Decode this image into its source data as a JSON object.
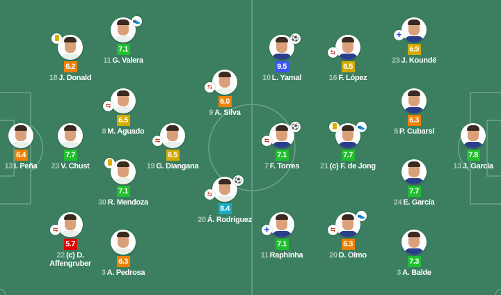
{
  "colors": {
    "pitch": "#3b7f60",
    "lines": "#6fa287",
    "green": "#1fbf2e",
    "orange": "#f08000",
    "yellow": "#d4a900",
    "red": "#e00000",
    "blue": "#3a55ff",
    "teal": "#19a8c6"
  },
  "home_shirt": "#e8f0ea",
  "away_shirt": "#2a3f8a",
  "players": [
    {
      "team": "home",
      "number": "13",
      "name": "I. Peña",
      "rating": "6.4",
      "rating_color": "#f08000",
      "icons": []
    },
    {
      "team": "home",
      "number": "23",
      "name": "V. Chust",
      "rating": "7.7",
      "rating_color": "#1fbf2e",
      "icons": []
    },
    {
      "team": "home",
      "number": "18",
      "name": "J. Donald",
      "rating": "6.2",
      "rating_color": "#f08000",
      "icons": [
        "yellow-card"
      ]
    },
    {
      "team": "home",
      "number": "11",
      "name": "G. Valera",
      "rating": "7.1",
      "rating_color": "#1fbf2e",
      "icons": [
        "assist"
      ]
    },
    {
      "team": "home",
      "number": "8",
      "name": "M. Aguado",
      "rating": "6.5",
      "rating_color": "#d4a900",
      "icons": [
        "substitution"
      ]
    },
    {
      "team": "home",
      "number": "30",
      "name": "R. Mendoza",
      "rating": "7.1",
      "rating_color": "#1fbf2e",
      "icons": [
        "yellow-card"
      ]
    },
    {
      "team": "home",
      "number": "22",
      "name": "(c) D. Affengruber",
      "rating": "5.7",
      "rating_color": "#e00000",
      "icons": [
        "substitution"
      ]
    },
    {
      "team": "home",
      "number": "3",
      "name": "A. Pedrosa",
      "rating": "6.3",
      "rating_color": "#f08000",
      "icons": []
    },
    {
      "team": "home",
      "number": "19",
      "name": "G. Diangana",
      "rating": "6.5",
      "rating_color": "#d4a900",
      "icons": [
        "substitution"
      ]
    },
    {
      "team": "home",
      "number": "9",
      "name": "A. Silva",
      "rating": "6.0",
      "rating_color": "#f08000",
      "icons": [
        "substitution"
      ]
    },
    {
      "team": "home",
      "number": "20",
      "name": "Á. Rodriguez",
      "rating": "8.4",
      "rating_color": "#19a8c6",
      "icons": [
        "goal",
        "substitution"
      ]
    },
    {
      "team": "away",
      "number": "10",
      "name": "L. Yamal",
      "rating": "9.5",
      "rating_color": "#3a55ff",
      "icons": [
        "goal"
      ]
    },
    {
      "team": "away",
      "number": "16",
      "name": "F. López",
      "rating": "6.5",
      "rating_color": "#d4a900",
      "icons": [
        "substitution"
      ]
    },
    {
      "team": "away",
      "number": "23",
      "name": "J. Koundé",
      "rating": "6.9",
      "rating_color": "#d4a900",
      "icons": [
        "injury-substitution"
      ]
    },
    {
      "team": "away",
      "number": "5",
      "name": "P. Cubarsí",
      "rating": "6.3",
      "rating_color": "#f08000",
      "icons": []
    },
    {
      "team": "away",
      "number": "7",
      "name": "F. Torres",
      "rating": "7.1",
      "rating_color": "#1fbf2e",
      "icons": [
        "goal",
        "substitution"
      ]
    },
    {
      "team": "away",
      "number": "21",
      "name": "(c) F. de Jong",
      "rating": "7.7",
      "rating_color": "#1fbf2e",
      "icons": [
        "yellow-card",
        "assist"
      ]
    },
    {
      "team": "away",
      "number": "13",
      "name": "J. García",
      "rating": "7.8",
      "rating_color": "#1fbf2e",
      "icons": []
    },
    {
      "team": "away",
      "number": "24",
      "name": "E. García",
      "rating": "7.7",
      "rating_color": "#1fbf2e",
      "icons": []
    },
    {
      "team": "away",
      "number": "11",
      "name": "Raphinha",
      "rating": "7.1",
      "rating_color": "#1fbf2e",
      "icons": [
        "injury-substitution"
      ]
    },
    {
      "team": "away",
      "number": "20",
      "name": "D. Olmo",
      "rating": "6.3",
      "rating_color": "#f08000",
      "icons": [
        "substitution",
        "assist"
      ]
    },
    {
      "team": "away",
      "number": "3",
      "name": "A. Balde",
      "rating": "7.3",
      "rating_color": "#1fbf2e",
      "icons": []
    }
  ]
}
